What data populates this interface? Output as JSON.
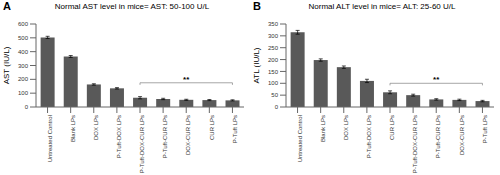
{
  "chart_data": [
    {
      "type": "bar",
      "title": "Normal AST level in mice= AST: 50-100 U/L",
      "y_label": "AST (IU/L)",
      "categories": [
        "Untreated Control",
        "Blank LPs",
        "DOX LPs",
        "P-Tuft-DOX LPs",
        "P-Tuft-DOX-CUR LPs",
        "P-Tuft-CUR LPs",
        "DOX-CUR LPs",
        "CUR LPs",
        "P-Tuft LPs"
      ],
      "values": [
        503,
        365,
        163,
        135,
        67,
        58,
        52,
        50,
        48
      ],
      "errors": [
        8,
        7,
        5,
        5,
        8,
        5,
        4,
        4,
        4
      ],
      "color": "#595959",
      "ylim": [
        0,
        600
      ],
      "yticks": [
        0,
        100,
        200,
        300,
        400,
        500,
        600
      ],
      "grid": false,
      "annotations": [
        {
          "text": "A"
        },
        {
          "text": "**",
          "x": [
            "P-Tuft-DOX-CUR LPs",
            "P-Tuft LPs"
          ],
          "y": 175
        }
      ]
    },
    {
      "type": "bar",
      "title": "Normal ALT level in mice= ALT: 25-60 U/L",
      "y_label": "ATL (IU/L)",
      "categories": [
        "Untreated Control",
        "Blank LPs",
        "DOX LPs",
        "P-Tuft-DOX LPs",
        "CUR LPs",
        "P-Tuft-DOX-CUR LPs",
        "P-Tuft-CUR LPs",
        "DOX-CUR LPs",
        "P-Tuft LPs"
      ],
      "values": [
        315,
        198,
        168,
        110,
        62,
        50,
        32,
        30,
        25
      ],
      "errors": [
        8,
        5,
        5,
        7,
        6,
        4,
        3,
        3,
        3
      ],
      "color": "#595959",
      "ylim": [
        0,
        350
      ],
      "yticks": [
        0,
        50,
        100,
        150,
        200,
        250,
        300,
        350
      ],
      "grid": false,
      "annotations": [
        {
          "text": "B"
        },
        {
          "text": "**",
          "x": [
            "CUR LPs",
            "P-Tuft LPs"
          ],
          "y": 100
        }
      ]
    }
  ]
}
